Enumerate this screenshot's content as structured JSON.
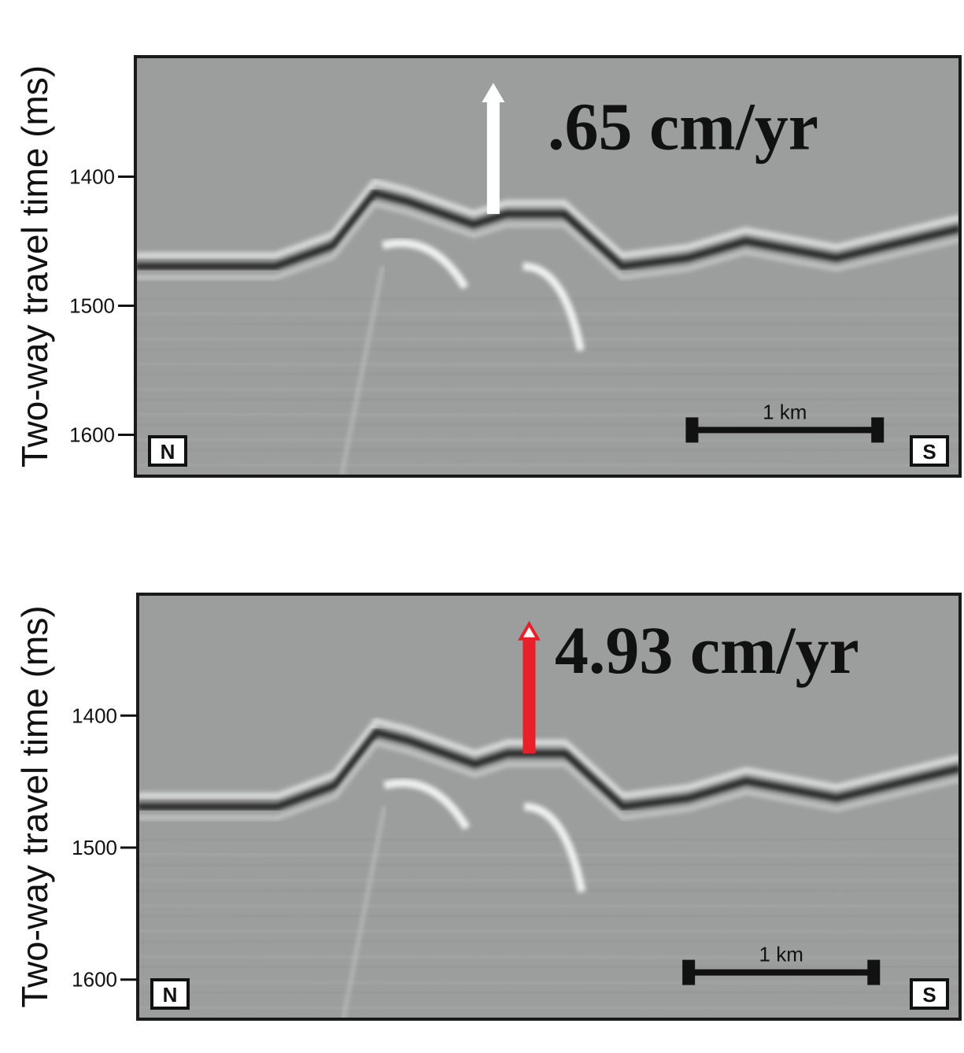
{
  "panels": [
    {
      "y_axis_label": "Two-way travel time (ms)",
      "ylim": [
        1307,
        1632
      ],
      "yticks": [
        1400,
        1500,
        1600
      ],
      "rate_label": ".65 cm/yr",
      "arrow_color": "#ffffff",
      "scale_label": "1 km",
      "left_label": "N",
      "right_label": "S"
    },
    {
      "y_axis_label": "Two-way travel time (ms)",
      "ylim": [
        1308,
        1630
      ],
      "yticks": [
        1400,
        1500,
        1600
      ],
      "rate_label": "4.93 cm/yr",
      "arrow_color": "#e8202a",
      "scale_label": "1 km",
      "left_label": "N",
      "right_label": "S"
    }
  ]
}
